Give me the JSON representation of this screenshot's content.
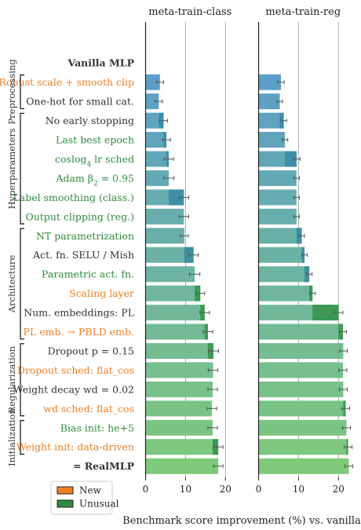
{
  "chart_data": {
    "type": "bar",
    "panels": [
      {
        "title": "meta-train-class",
        "xlim": [
          -0.2,
          22.5
        ],
        "xticks": [
          0,
          10,
          20
        ]
      },
      {
        "title": "meta-train-reg",
        "xlim": [
          -0.2,
          22.5
        ],
        "xticks": [
          0,
          10,
          20
        ]
      }
    ],
    "xlabel": "Benchmark score improvement (%) vs. vanilla",
    "categories": [
      {
        "label": "Vanilla MLP",
        "style": "bold"
      },
      {
        "label": "Robust scale + smooth clip",
        "style": "new"
      },
      {
        "label": "One-hot for small cat.",
        "style": "normal"
      },
      {
        "label": "No early stopping",
        "style": "normal"
      },
      {
        "label": "Last best epoch",
        "style": "unusual"
      },
      {
        "label": "coslog",
        "sub": "4",
        "suffix": " lr sched",
        "style": "unusual"
      },
      {
        "label": "Adam β",
        "sub": "2",
        "suffix": " = 0.95",
        "style": "unusual"
      },
      {
        "label": "Label smoothing (class.)",
        "style": "unusual"
      },
      {
        "label": "Output clipping (reg.)",
        "style": "unusual"
      },
      {
        "label": "NT parametrization",
        "style": "unusual"
      },
      {
        "label": "Act. fn. SELU / Mish",
        "style": "normal"
      },
      {
        "label": "Parametric act. fn.",
        "style": "unusual"
      },
      {
        "label": "Scaling layer",
        "style": "new"
      },
      {
        "label": "Num. embeddings: PL",
        "style": "normal"
      },
      {
        "label": "PL emb. → PBLD emb.",
        "style": "new"
      },
      {
        "label": "Dropout p = 0.15",
        "style": "normal"
      },
      {
        "label": "Dropout sched: flat_cos",
        "style": "new"
      },
      {
        "label": "Weight decay wd = 0.02",
        "style": "normal"
      },
      {
        "label": "wd sched: flat_cos",
        "style": "new"
      },
      {
        "label": "Bias init: he+5",
        "style": "unusual"
      },
      {
        "label": "Weight init: data-driven",
        "style": "new"
      },
      {
        "label": "= RealMLP",
        "style": "bold"
      }
    ],
    "series": [
      {
        "panel": "meta-train-class",
        "cumulative": [
          null,
          3.6,
          3.3,
          4.5,
          5.2,
          5.8,
          5.8,
          9.6,
          9.6,
          9.7,
          12.0,
          12.3,
          13.7,
          14.8,
          15.6,
          17.0,
          16.9,
          16.8,
          16.6,
          16.8,
          18.2,
          18.2
        ],
        "errors": [
          null,
          0.9,
          0.9,
          1.0,
          1.0,
          1.2,
          1.3,
          1.2,
          1.2,
          1.0,
          1.2,
          1.3,
          1.1,
          1.2,
          1.2,
          1.3,
          1.2,
          1.2,
          1.2,
          1.2,
          1.2,
          1.2
        ]
      },
      {
        "panel": "meta-train-reg",
        "cumulative": [
          null,
          5.6,
          5.3,
          6.3,
          6.6,
          9.5,
          9.5,
          9.5,
          9.5,
          10.8,
          11.5,
          12.7,
          13.5,
          20.0,
          21.1,
          21.2,
          21.1,
          21.2,
          21.8,
          22.0,
          22.4,
          22.6
        ],
        "errors": [
          null,
          0.8,
          0.7,
          0.7,
          0.7,
          0.9,
          0.7,
          0.7,
          0.7,
          0.7,
          0.7,
          0.7,
          0.7,
          1.1,
          0.9,
          1.0,
          1.0,
          1.0,
          1.0,
          1.0,
          1.0,
          1.0
        ]
      }
    ],
    "groups": [
      {
        "name": "Preprocessing",
        "from": 1,
        "to": 2
      },
      {
        "name": "Hyperparameters",
        "from": 3,
        "to": 8
      },
      {
        "name": "Architecture",
        "from": 9,
        "to": 14
      },
      {
        "name": "Regularization",
        "from": 15,
        "to": 18
      },
      {
        "name": "Initialization",
        "from": 19,
        "to": 20
      }
    ],
    "legend": {
      "position": "bottom-left",
      "items": [
        {
          "label": "New",
          "color": "#f07f22"
        },
        {
          "label": "Unusual",
          "color": "#2e8b3b"
        }
      ]
    },
    "colors": {
      "new": "#f07f22",
      "unusual": "#2e8b3b",
      "normal": "#333333",
      "bar_start": "#5b9fc8",
      "bar_end": "#7fc97a",
      "grid": "#aaaaaa"
    }
  }
}
